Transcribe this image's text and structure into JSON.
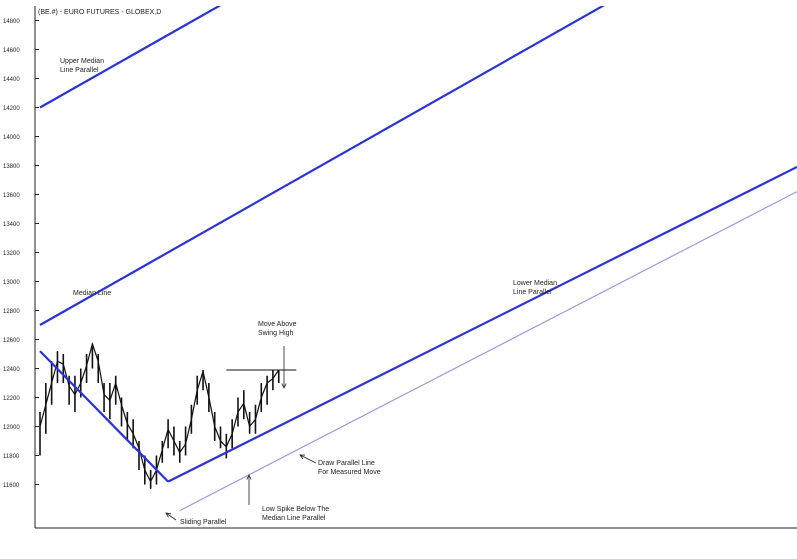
{
  "chart_data": {
    "type": "line",
    "title": "(BE.#) - EURO FUTURES - GLOBEX,D",
    "xlabel": "",
    "ylabel": "",
    "ylim": [
      11300,
      14900
    ],
    "xlim": [
      0,
      130
    ],
    "grid": false,
    "y_tick_labels": [
      "14800",
      "14600",
      "14400",
      "14200",
      "14000",
      "13800",
      "13600",
      "13400",
      "13200",
      "13000",
      "12800",
      "12600",
      "12400",
      "12200",
      "12000",
      "11800",
      "11600"
    ],
    "y_ticks": [
      14800,
      14600,
      14400,
      14200,
      14000,
      13800,
      13600,
      13400,
      13200,
      13000,
      12800,
      12600,
      12400,
      12200,
      12000,
      11800,
      11600
    ],
    "price": {
      "x": [
        0,
        1,
        2,
        3,
        4,
        5,
        6,
        7,
        8,
        9,
        10,
        11,
        12,
        13,
        14,
        15,
        16,
        17,
        18,
        19,
        20,
        21,
        22,
        23,
        24,
        25,
        26,
        27,
        28,
        29,
        30,
        31,
        32,
        33,
        34,
        35,
        36,
        37,
        38,
        39,
        40,
        41
      ],
      "y": [
        12000,
        12150,
        12300,
        12450,
        12430,
        12280,
        12220,
        12300,
        12420,
        12570,
        12450,
        12220,
        12180,
        12300,
        12150,
        12020,
        11950,
        11850,
        11700,
        11620,
        11700,
        11840,
        11980,
        11900,
        11820,
        11880,
        12050,
        12250,
        12380,
        12200,
        12000,
        11900,
        11860,
        11950,
        12100,
        12160,
        12000,
        12050,
        12200,
        12300,
        12330,
        12390
      ],
      "range": [
        [
          11800,
          12100
        ],
        [
          11950,
          12300
        ],
        [
          12150,
          12450
        ],
        [
          12300,
          12520
        ],
        [
          12300,
          12500
        ],
        [
          12150,
          12350
        ],
        [
          12100,
          12350
        ],
        [
          12200,
          12400
        ],
        [
          12300,
          12500
        ],
        [
          12400,
          12570
        ],
        [
          12300,
          12500
        ],
        [
          12100,
          12300
        ],
        [
          12050,
          12300
        ],
        [
          12150,
          12350
        ],
        [
          12000,
          12200
        ],
        [
          11900,
          12100
        ],
        [
          11850,
          12050
        ],
        [
          11700,
          11900
        ],
        [
          11600,
          11800
        ],
        [
          11570,
          11700
        ],
        [
          11600,
          11800
        ],
        [
          11750,
          11900
        ],
        [
          11850,
          12050
        ],
        [
          11800,
          12000
        ],
        [
          11750,
          11900
        ],
        [
          11800,
          12000
        ],
        [
          11950,
          12150
        ],
        [
          12150,
          12350
        ],
        [
          12250,
          12390
        ],
        [
          12100,
          12300
        ],
        [
          11900,
          12100
        ],
        [
          11850,
          12000
        ],
        [
          11780,
          11950
        ],
        [
          11850,
          12050
        ],
        [
          12000,
          12200
        ],
        [
          12050,
          12250
        ],
        [
          11950,
          12100
        ],
        [
          11950,
          12150
        ],
        [
          12100,
          12300
        ],
        [
          12150,
          12350
        ],
        [
          12250,
          12390
        ],
        [
          12300,
          12390
        ]
      ]
    },
    "median_line": {
      "x": [
        0,
        130
      ],
      "y": [
        12700,
        15660
      ]
    },
    "upper_median_line_parallel": {
      "x": [
        0,
        130
      ],
      "y": [
        14200,
        17160
      ]
    },
    "lower_median_line_parallel": {
      "x": [
        22,
        130
      ],
      "y": [
        11620,
        13790
      ]
    },
    "downtrend_line": {
      "x": [
        0,
        22
      ],
      "y": [
        12520,
        11620
      ]
    },
    "sliding_parallel": {
      "x": [
        24,
        130
      ],
      "y": [
        11420,
        13620
      ]
    },
    "swing_high_line": {
      "x": [
        32,
        44
      ],
      "y": [
        12390,
        12390
      ]
    },
    "annotations": [
      {
        "lines": [
          "Upper Median",
          "Line Parallel"
        ]
      },
      {
        "lines": [
          "Median Line"
        ]
      },
      {
        "lines": [
          "Lower Median",
          "Line Parallel"
        ]
      },
      {
        "lines": [
          "Move Above",
          "Swing High"
        ]
      },
      {
        "lines": [
          "Draw Parallel Line",
          "For Measured Move"
        ]
      },
      {
        "lines": [
          "Low Spike Below The",
          "Median Line Parallel"
        ]
      },
      {
        "lines": [
          "Sliding Parallel"
        ]
      }
    ]
  },
  "colors": {
    "pitchfork": "#2a33d6",
    "sliding": "#9b9ce0",
    "price": "#111111",
    "axis": "#222222",
    "text": "#222222"
  }
}
